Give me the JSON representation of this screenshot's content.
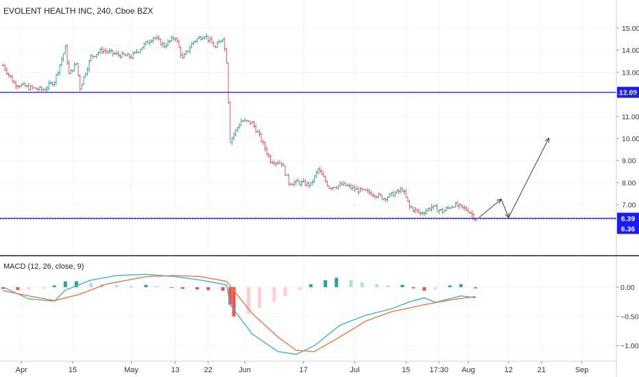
{
  "symbol_title": "EVOLENT HEALTH INC, 240, Cboe BZX",
  "macd_title": "MACD (12, 26, close, 9)",
  "chart_data": [
    {
      "type": "ohlc",
      "title": "EVOLENT HEALTH INC, 240, Cboe BZX",
      "x_tick_labels": [
        "Apr",
        "15",
        "May",
        "13",
        "22",
        "Jun",
        "17",
        "Jul",
        "15",
        "17:30",
        "Aug",
        "12",
        "21",
        "Sep"
      ],
      "y_ticks": [
        7.0,
        8.0,
        9.0,
        10.0,
        11.0,
        12.0,
        13.0,
        14.0,
        15.0
      ],
      "ylim": [
        5.5,
        15.4
      ],
      "horizontal_lines": [
        {
          "value": 12.09,
          "label": "12.09",
          "color": "#1a1aff"
        },
        {
          "value": 6.39,
          "label": "6.39",
          "color": "#1a1aff"
        }
      ],
      "last_price_label": {
        "value": 6.36,
        "label": "6.36",
        "color": "#1a1aff"
      },
      "projection_path": [
        {
          "date": "Aug 4",
          "value": 6.43
        },
        {
          "date": "Aug 10",
          "value": 7.25
        },
        {
          "date": "Aug 12",
          "value": 6.42
        },
        {
          "date": "Aug 23",
          "value": 10.02
        }
      ],
      "up_color": "#26a69a",
      "down_color": "#ef5350",
      "price_path": [
        [
          "Mar 27",
          13.3
        ],
        [
          "Mar 30",
          12.5
        ],
        [
          "Apr 3",
          12.3
        ],
        [
          "Apr 7",
          12.2
        ],
        [
          "Apr 10",
          12.6
        ],
        [
          "Apr 13",
          14.1
        ],
        [
          "Apr 14",
          12.9
        ],
        [
          "Apr 16",
          13.4
        ],
        [
          "Apr 17",
          12.3
        ],
        [
          "Apr 20",
          13.7
        ],
        [
          "Apr 23",
          14.0
        ],
        [
          "Apr 27",
          13.8
        ],
        [
          "May 1",
          13.7
        ],
        [
          "May 5",
          14.3
        ],
        [
          "May 7",
          14.6
        ],
        [
          "May 10",
          14.2
        ],
        [
          "May 13",
          14.6
        ],
        [
          "May 15",
          13.6
        ],
        [
          "May 18",
          14.4
        ],
        [
          "May 21",
          14.7
        ],
        [
          "May 24",
          14.1
        ],
        [
          "May 26",
          14.6
        ],
        [
          "May 27",
          13.5
        ],
        [
          "May 28",
          9.9
        ],
        [
          "May 31",
          10.8
        ],
        [
          "Jun 3",
          10.7
        ],
        [
          "Jun 5",
          10.1
        ],
        [
          "Jun 8",
          9.0
        ],
        [
          "Jun 11",
          8.9
        ],
        [
          "Jun 13",
          8.0
        ],
        [
          "Jun 16",
          8.0
        ],
        [
          "Jun 19",
          7.9
        ],
        [
          "Jun 21",
          8.6
        ],
        [
          "Jun 24",
          7.8
        ],
        [
          "Jun 28",
          7.9
        ],
        [
          "Jul 1",
          7.7
        ],
        [
          "Jul 6",
          7.5
        ],
        [
          "Jul 9",
          7.3
        ],
        [
          "Jul 13",
          7.6
        ],
        [
          "Jul 14",
          7.7
        ],
        [
          "Jul 16",
          6.9
        ],
        [
          "Jul 19",
          6.6
        ],
        [
          "Jul 22",
          6.9
        ],
        [
          "Jul 25",
          6.7
        ],
        [
          "Jul 28",
          7.0
        ],
        [
          "Aug 1",
          6.75
        ],
        [
          "Aug 3",
          6.36
        ]
      ]
    },
    {
      "type": "macd",
      "title": "MACD (12, 26, close, 9)",
      "y_ticks": [
        0.0,
        -0.5,
        -1.0
      ],
      "ylim": [
        -1.22,
        0.48
      ],
      "macd_color": "#3bb3c9",
      "signal_color": "#f4743b",
      "macd_line": [
        [
          "Mar 27",
          0.0
        ],
        [
          "Apr 3",
          -0.2
        ],
        [
          "Apr 10",
          -0.24
        ],
        [
          "Apr 13",
          -0.05
        ],
        [
          "Apr 20",
          0.12
        ],
        [
          "Apr 27",
          0.2
        ],
        [
          "May 5",
          0.22
        ],
        [
          "May 13",
          0.18
        ],
        [
          "May 20",
          0.12
        ],
        [
          "May 27",
          0.04
        ],
        [
          "May 28",
          -0.3
        ],
        [
          "Jun 3",
          -0.8
        ],
        [
          "Jun 10",
          -1.1
        ],
        [
          "Jun 15",
          -1.15
        ],
        [
          "Jun 20",
          -1.0
        ],
        [
          "Jun 27",
          -0.65
        ],
        [
          "Jul 4",
          -0.48
        ],
        [
          "Jul 11",
          -0.37
        ],
        [
          "Jul 16",
          -0.25
        ],
        [
          "Jul 20",
          -0.18
        ],
        [
          "Jul 23",
          -0.26
        ],
        [
          "Jul 30",
          -0.15
        ],
        [
          "Aug 3",
          -0.18
        ]
      ],
      "signal_line": [
        [
          "Mar 27",
          -0.06
        ],
        [
          "Apr 3",
          -0.15
        ],
        [
          "Apr 10",
          -0.23
        ],
        [
          "Apr 17",
          -0.12
        ],
        [
          "Apr 24",
          0.05
        ],
        [
          "May 5",
          0.18
        ],
        [
          "May 13",
          0.2
        ],
        [
          "May 20",
          0.18
        ],
        [
          "May 27",
          0.1
        ],
        [
          "Jun 3",
          -0.45
        ],
        [
          "Jun 10",
          -0.85
        ],
        [
          "Jun 15",
          -1.08
        ],
        [
          "Jun 20",
          -1.1
        ],
        [
          "Jun 27",
          -0.85
        ],
        [
          "Jul 4",
          -0.58
        ],
        [
          "Jul 11",
          -0.42
        ],
        [
          "Jul 20",
          -0.3
        ],
        [
          "Jul 27",
          -0.22
        ],
        [
          "Aug 3",
          -0.16
        ]
      ],
      "histogram": [
        [
          "Mar 27",
          -0.03
        ],
        [
          "Mar 31",
          -0.05
        ],
        [
          "Apr 3",
          -0.04
        ],
        [
          "Apr 7",
          -0.02
        ],
        [
          "Apr 10",
          0.03
        ],
        [
          "Apr 13",
          0.1
        ],
        [
          "Apr 16",
          0.1
        ],
        [
          "Apr 20",
          0.07
        ],
        [
          "Apr 23",
          0.05
        ],
        [
          "Apr 27",
          0.04
        ],
        [
          "May 1",
          0.02
        ],
        [
          "May 5",
          0.04
        ],
        [
          "May 8",
          0.02
        ],
        [
          "May 12",
          -0.01
        ],
        [
          "May 15",
          -0.03
        ],
        [
          "May 19",
          -0.04
        ],
        [
          "May 22",
          -0.05
        ],
        [
          "May 26",
          -0.06
        ],
        [
          "May 28",
          -0.3
        ],
        [
          "May 29",
          -0.5
        ],
        [
          "Jun 2",
          -0.45
        ],
        [
          "Jun 5",
          -0.35
        ],
        [
          "Jun 9",
          -0.25
        ],
        [
          "Jun 12",
          -0.15
        ],
        [
          "Jun 16",
          -0.05
        ],
        [
          "Jun 19",
          0.05
        ],
        [
          "Jun 23",
          0.12
        ],
        [
          "Jun 26",
          0.16
        ],
        [
          "Jun 30",
          0.12
        ],
        [
          "Jul 3",
          0.08
        ],
        [
          "Jul 7",
          0.05
        ],
        [
          "Jul 10",
          0.03
        ],
        [
          "Jul 14",
          0.04
        ],
        [
          "Jul 17",
          -0.02
        ],
        [
          "Jul 20",
          -0.06
        ],
        [
          "Jul 23",
          -0.04
        ],
        [
          "Jul 27",
          0.03
        ],
        [
          "Jul 30",
          0.05
        ],
        [
          "Aug 3",
          -0.02
        ]
      ]
    }
  ]
}
